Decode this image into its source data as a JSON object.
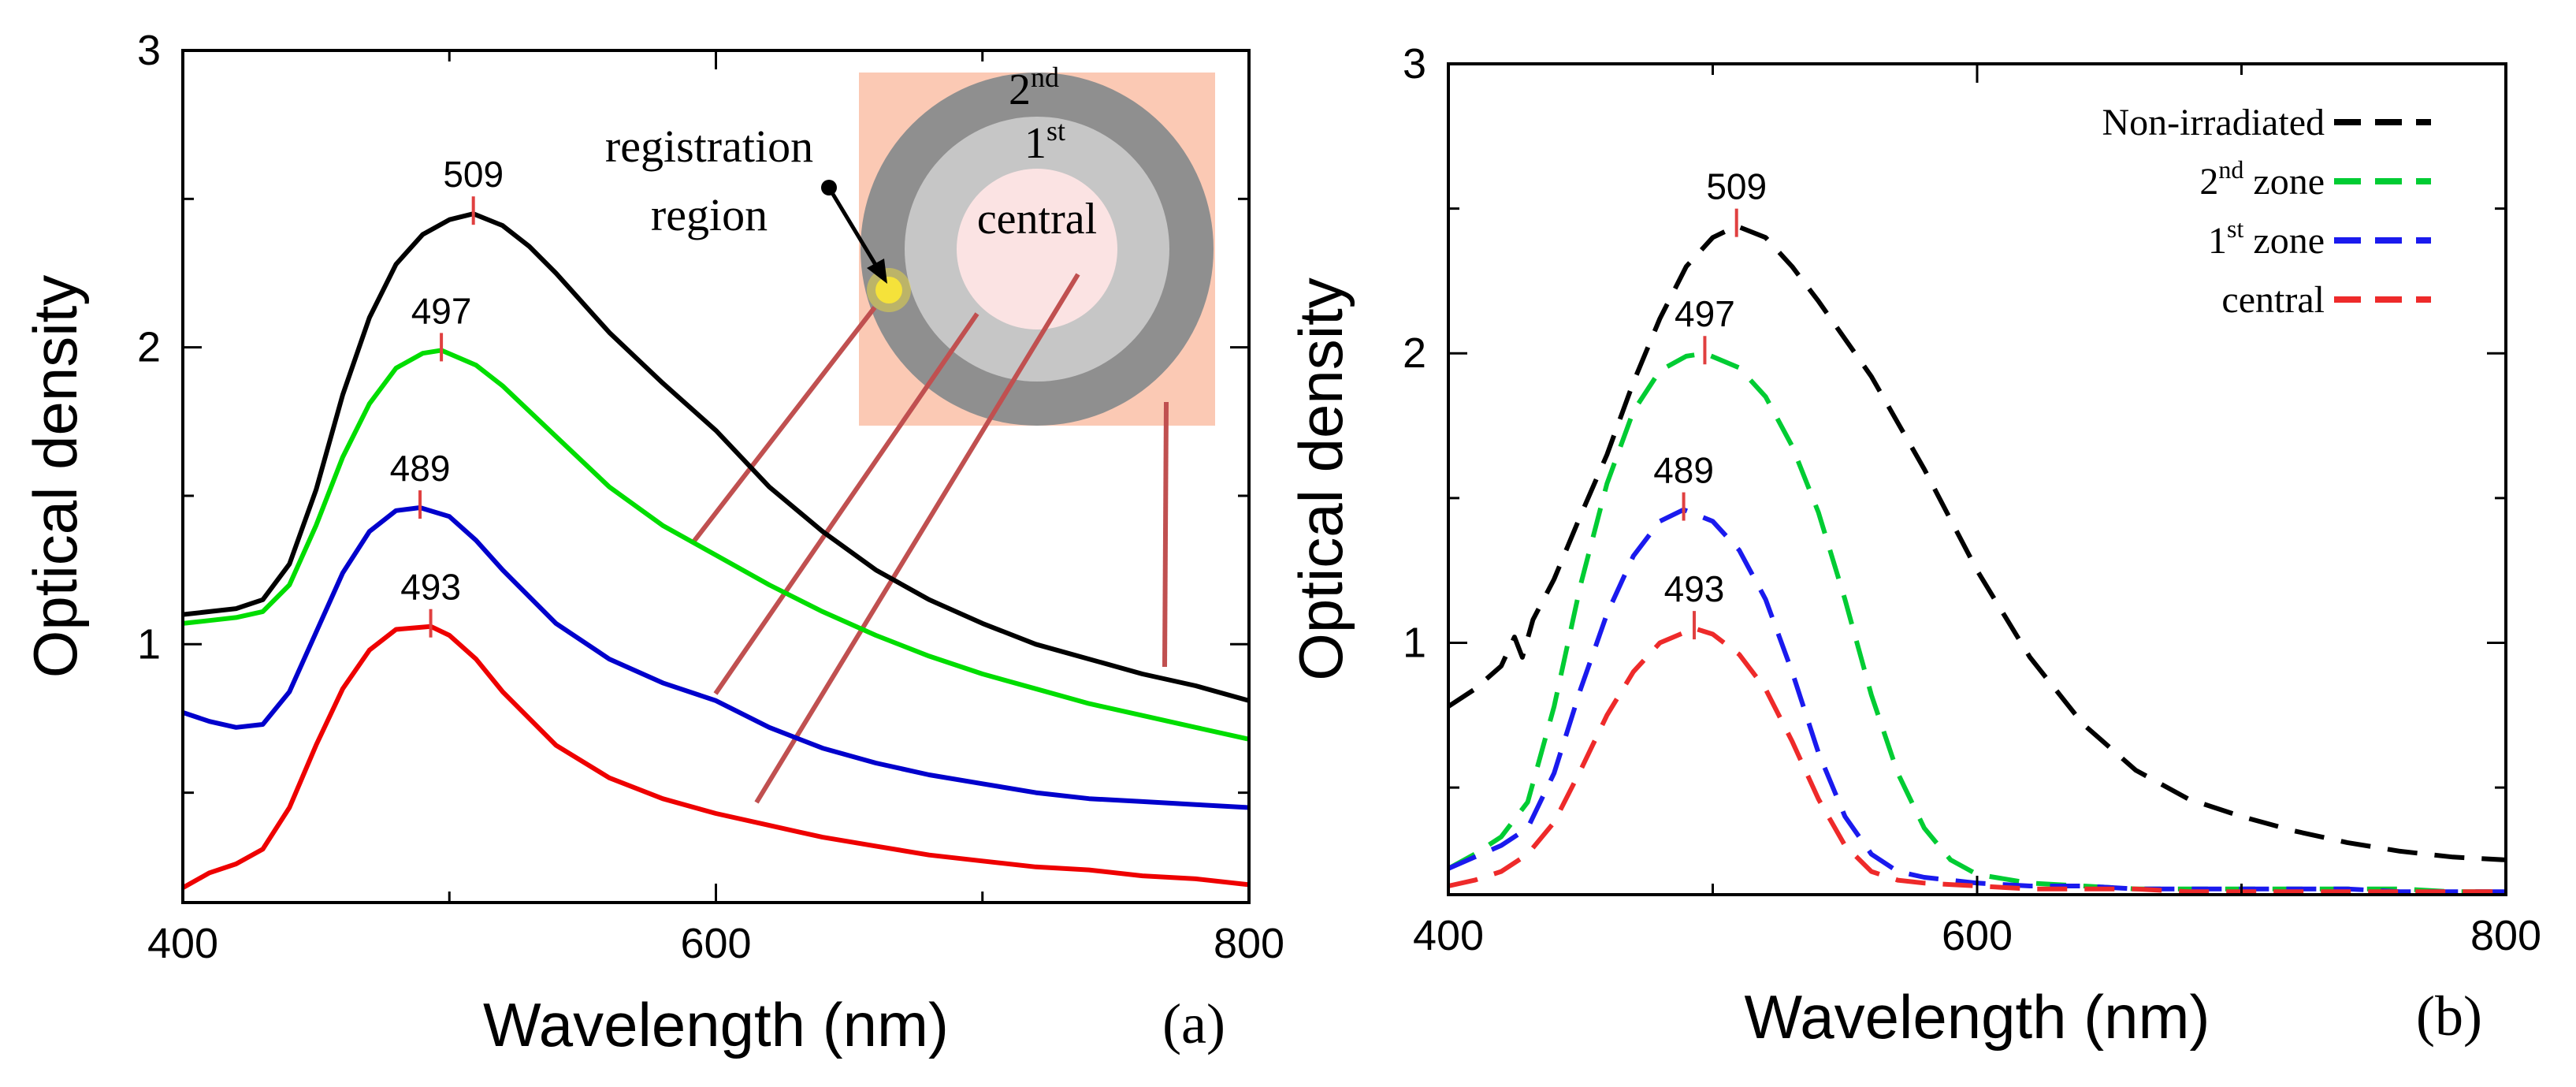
{
  "chart_data": [
    {
      "panel": "a",
      "type": "line",
      "panel_label": "(a)",
      "xlabel": "Wavelength (nm)",
      "ylabel": "Optical density",
      "xlim": [
        400,
        800
      ],
      "ylim": [
        0.13,
        3.0
      ],
      "x_ticks": [
        400,
        600,
        800
      ],
      "y_ticks": [
        1,
        2,
        3
      ],
      "y_minor_ticks": [
        0.5,
        1.5,
        2.5
      ],
      "x_minor_ticks": [
        500,
        700
      ],
      "line_style": "solid",
      "series": [
        {
          "name": "Non-irradiated",
          "color": "#000000",
          "x": [
            400,
            410,
            420,
            430,
            440,
            450,
            460,
            470,
            480,
            490,
            500,
            509,
            520,
            530,
            540,
            550,
            560,
            580,
            600,
            620,
            640,
            660,
            680,
            700,
            720,
            740,
            760,
            780,
            800
          ],
          "y": [
            1.1,
            1.11,
            1.12,
            1.15,
            1.27,
            1.52,
            1.84,
            2.1,
            2.28,
            2.38,
            2.43,
            2.45,
            2.41,
            2.34,
            2.25,
            2.15,
            2.05,
            1.88,
            1.72,
            1.53,
            1.38,
            1.25,
            1.15,
            1.07,
            1.0,
            0.95,
            0.9,
            0.86,
            0.81
          ]
        },
        {
          "name": "2nd zone",
          "color": "#00dd00",
          "x": [
            400,
            410,
            420,
            430,
            440,
            450,
            460,
            470,
            480,
            490,
            497,
            510,
            520,
            540,
            560,
            580,
            600,
            620,
            640,
            660,
            680,
            700,
            720,
            740,
            760,
            780,
            800
          ],
          "y": [
            1.07,
            1.08,
            1.09,
            1.11,
            1.2,
            1.4,
            1.63,
            1.81,
            1.93,
            1.98,
            1.99,
            1.94,
            1.87,
            1.7,
            1.53,
            1.4,
            1.3,
            1.2,
            1.11,
            1.03,
            0.96,
            0.9,
            0.85,
            0.8,
            0.76,
            0.72,
            0.68
          ]
        },
        {
          "name": "1st zone",
          "color": "#0000cc",
          "x": [
            400,
            410,
            420,
            430,
            440,
            450,
            460,
            470,
            480,
            489,
            500,
            510,
            520,
            540,
            560,
            580,
            600,
            620,
            640,
            660,
            680,
            700,
            720,
            740,
            760,
            780,
            800
          ],
          "y": [
            0.77,
            0.74,
            0.72,
            0.73,
            0.84,
            1.04,
            1.24,
            1.38,
            1.45,
            1.46,
            1.43,
            1.35,
            1.25,
            1.07,
            0.95,
            0.87,
            0.81,
            0.72,
            0.65,
            0.6,
            0.56,
            0.53,
            0.5,
            0.48,
            0.47,
            0.46,
            0.45
          ]
        },
        {
          "name": "central",
          "color": "#ee0000",
          "x": [
            400,
            410,
            420,
            430,
            440,
            450,
            460,
            470,
            480,
            493,
            500,
            510,
            520,
            540,
            560,
            580,
            600,
            620,
            640,
            660,
            680,
            700,
            720,
            740,
            760,
            780,
            800
          ],
          "y": [
            0.18,
            0.23,
            0.26,
            0.31,
            0.45,
            0.66,
            0.85,
            0.98,
            1.05,
            1.06,
            1.03,
            0.95,
            0.84,
            0.66,
            0.55,
            0.48,
            0.43,
            0.39,
            0.35,
            0.32,
            0.29,
            0.27,
            0.25,
            0.24,
            0.22,
            0.21,
            0.19
          ]
        }
      ],
      "peaks": [
        {
          "label": "509",
          "x": 509,
          "y": 2.45
        },
        {
          "label": "497",
          "x": 497,
          "y": 1.99
        },
        {
          "label": "489",
          "x": 489,
          "y": 1.46
        },
        {
          "label": "493",
          "x": 493,
          "y": 1.06
        }
      ],
      "inset": {
        "zone_labels": [
          "2nd",
          "1st",
          "central"
        ],
        "registration_label_line1": "registration",
        "registration_label_line2": "region",
        "colors": {
          "background": "#fbc9b4",
          "outer_ring": "#8f8f8f",
          "middle_ring": "#c6c6c6",
          "center": "#fbe3e3",
          "spot": "#f5e23a",
          "leader": "#c05050"
        }
      }
    },
    {
      "panel": "b",
      "type": "line",
      "panel_label": "(b)",
      "xlabel": "Wavelength (nm)",
      "ylabel": "Optical density",
      "xlim": [
        400,
        800
      ],
      "ylim": [
        0.13,
        3.0
      ],
      "x_ticks": [
        400,
        600,
        800
      ],
      "y_ticks": [
        1,
        2,
        3
      ],
      "y_minor_ticks": [
        0.5,
        1.5,
        2.5
      ],
      "x_minor_ticks": [
        500,
        700
      ],
      "line_style": "dashed",
      "series": [
        {
          "name": "Non-irradiated",
          "color": "#000000",
          "x": [
            400,
            410,
            420,
            425,
            428,
            432,
            440,
            450,
            460,
            470,
            480,
            490,
            500,
            509,
            520,
            530,
            540,
            560,
            580,
            600,
            620,
            640,
            660,
            680,
            700,
            720,
            740,
            760,
            780,
            800
          ],
          "y": [
            0.78,
            0.84,
            0.92,
            1.02,
            0.95,
            1.08,
            1.22,
            1.44,
            1.65,
            1.9,
            2.12,
            2.3,
            2.4,
            2.44,
            2.4,
            2.3,
            2.18,
            1.92,
            1.6,
            1.25,
            0.95,
            0.72,
            0.56,
            0.46,
            0.4,
            0.35,
            0.31,
            0.28,
            0.26,
            0.25
          ]
        },
        {
          "name": "2nd zone",
          "color": "#00cc33",
          "x": [
            400,
            410,
            420,
            430,
            440,
            450,
            460,
            470,
            480,
            490,
            497,
            510,
            520,
            530,
            540,
            550,
            560,
            570,
            580,
            590,
            600,
            620,
            640,
            660,
            680,
            700,
            720,
            740,
            760,
            780,
            800
          ],
          "y": [
            0.22,
            0.27,
            0.33,
            0.45,
            0.78,
            1.2,
            1.55,
            1.8,
            1.94,
            1.99,
            2.0,
            1.95,
            1.85,
            1.68,
            1.45,
            1.15,
            0.82,
            0.55,
            0.36,
            0.25,
            0.2,
            0.17,
            0.16,
            0.15,
            0.15,
            0.15,
            0.15,
            0.15,
            0.15,
            0.14,
            0.14
          ]
        },
        {
          "name": "1st zone",
          "color": "#1a1aee",
          "x": [
            400,
            410,
            420,
            430,
            440,
            450,
            460,
            470,
            480,
            489,
            500,
            510,
            520,
            530,
            540,
            550,
            560,
            570,
            580,
            600,
            620,
            640,
            660,
            680,
            700,
            720,
            740,
            760,
            780,
            800
          ],
          "y": [
            0.22,
            0.26,
            0.3,
            0.36,
            0.55,
            0.84,
            1.1,
            1.3,
            1.42,
            1.46,
            1.42,
            1.32,
            1.15,
            0.9,
            0.62,
            0.4,
            0.27,
            0.21,
            0.19,
            0.17,
            0.16,
            0.16,
            0.15,
            0.15,
            0.15,
            0.15,
            0.15,
            0.14,
            0.14,
            0.14
          ]
        },
        {
          "name": "central",
          "color": "#ee2a2a",
          "x": [
            400,
            410,
            420,
            430,
            440,
            450,
            460,
            470,
            480,
            493,
            500,
            510,
            520,
            530,
            540,
            550,
            560,
            570,
            580,
            600,
            620,
            640,
            660,
            680,
            700,
            720,
            740,
            760,
            780,
            800
          ],
          "y": [
            0.16,
            0.18,
            0.21,
            0.27,
            0.38,
            0.56,
            0.75,
            0.9,
            1.0,
            1.05,
            1.03,
            0.96,
            0.84,
            0.66,
            0.46,
            0.3,
            0.21,
            0.18,
            0.17,
            0.16,
            0.15,
            0.15,
            0.15,
            0.14,
            0.14,
            0.14,
            0.14,
            0.14,
            0.14,
            0.14
          ]
        }
      ],
      "peaks": [
        {
          "label": "509",
          "x": 509,
          "y": 2.44
        },
        {
          "label": "497",
          "x": 497,
          "y": 2.0
        },
        {
          "label": "489",
          "x": 489,
          "y": 1.46
        },
        {
          "label": "493",
          "x": 493,
          "y": 1.05
        }
      ],
      "legend": {
        "placement": "top-right",
        "entries": [
          {
            "text": "Non-irradiated",
            "base": "Non-irradiated",
            "sup": "",
            "suffix": "",
            "color": "#000000"
          },
          {
            "text": "2nd zone",
            "base": "2",
            "sup": "nd",
            "suffix": " zone",
            "color": "#00cc33"
          },
          {
            "text": "1st zone",
            "base": "1",
            "sup": "st",
            "suffix": " zone",
            "color": "#1a1aee"
          },
          {
            "text": "central",
            "base": "central",
            "sup": "",
            "suffix": "",
            "color": "#ee2a2a"
          }
        ]
      }
    }
  ]
}
